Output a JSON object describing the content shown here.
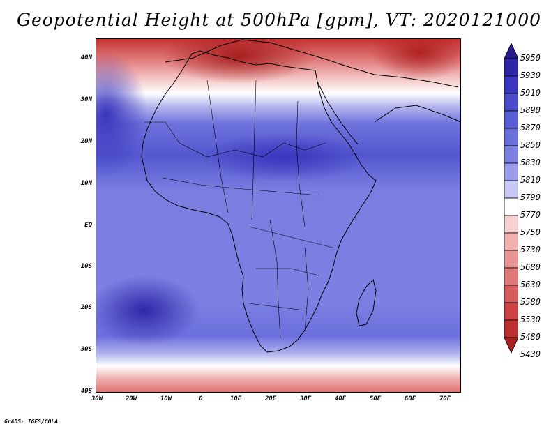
{
  "title": "Geopotential Height at 500hPa [gpm], VT: 2020121000",
  "footer": "GrADS: IGES/COLA",
  "lat_ticks": [
    "40N",
    "30N",
    "20N",
    "10N",
    "EQ",
    "10S",
    "20S",
    "30S",
    "40S"
  ],
  "lon_ticks": [
    "30W",
    "20W",
    "10W",
    "0",
    "10E",
    "20E",
    "30E",
    "40E",
    "50E",
    "60E",
    "70E"
  ],
  "colorbar_levels": [
    "5950",
    "5930",
    "5910",
    "5890",
    "5870",
    "5850",
    "5830",
    "5810",
    "5790",
    "5770",
    "5750",
    "5730",
    "5680",
    "5630",
    "5580",
    "5530",
    "5480",
    "5430"
  ],
  "colorbar_colors": [
    "#26198c",
    "#2e26a8",
    "#3a36bd",
    "#4a4ccc",
    "#5a5ed6",
    "#6b6fdc",
    "#7b80e2",
    "#9a9de9",
    "#c7c8f3",
    "#ffffff",
    "#f6d0d0",
    "#f0b0b0",
    "#e89494",
    "#e07878",
    "#d85c5c",
    "#cc4242",
    "#bd2e2e",
    "#a81f1f"
  ],
  "map": {
    "region": "Africa",
    "lat_range": [
      -40,
      45
    ],
    "lon_range": [
      -30,
      75
    ]
  }
}
